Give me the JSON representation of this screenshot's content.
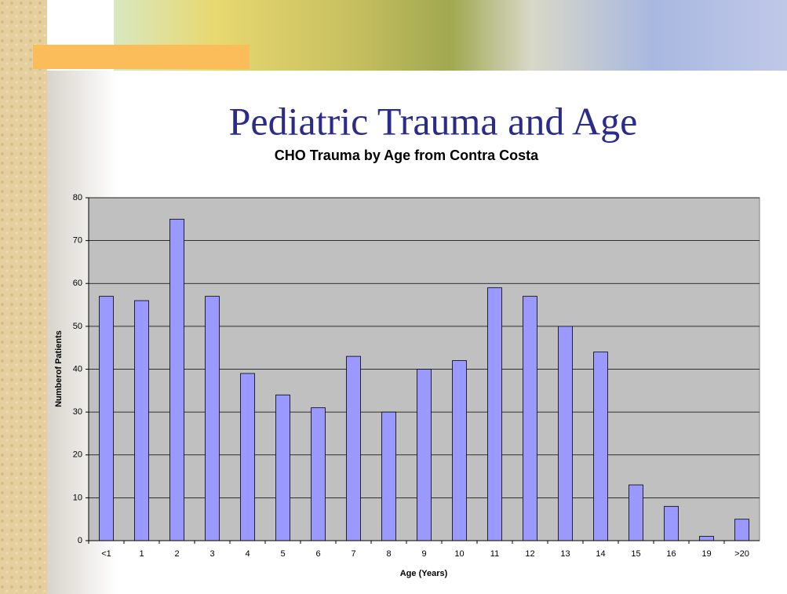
{
  "slide": {
    "title": "Pediatric Trauma and Age"
  },
  "chart_data": {
    "type": "bar",
    "title": "CHO Trauma by Age from Contra Costa",
    "x_label": "Age (Years)",
    "y_label": "Numberof Patients",
    "categories": [
      "<1",
      "1",
      "2",
      "3",
      "4",
      "5",
      "6",
      "7",
      "8",
      "9",
      "10",
      "11",
      "12",
      "13",
      "14",
      "15",
      "16",
      "19",
      ">20"
    ],
    "values": [
      57,
      56,
      75,
      57,
      39,
      34,
      31,
      43,
      30,
      40,
      42,
      59,
      57,
      50,
      44,
      13,
      8,
      1,
      5
    ],
    "color": "#9999ff",
    "plot_background": "#c0c0c0",
    "ylim": [
      0,
      80
    ],
    "yticks": [
      0,
      10,
      20,
      30,
      40,
      50,
      60,
      70,
      80
    ],
    "grid": true
  }
}
